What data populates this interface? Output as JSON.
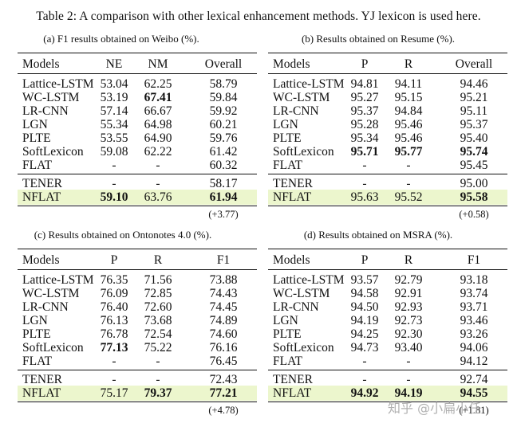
{
  "caption": "Table 2: A comparison with other lexical enhancement methods. YJ lexicon is used here.",
  "watermark": "知乎 @小扁小任",
  "highlight_color": "#ecf6cd",
  "tables": [
    {
      "subtitle": "(a) F1 results obtained on Weibo (%).",
      "headers": [
        "Models",
        "NE",
        "NM",
        "Overall"
      ],
      "rows": [
        {
          "model": "Lattice-LSTM",
          "v": [
            "53.04",
            "62.25",
            "58.79"
          ],
          "bold": [
            false,
            false,
            false
          ]
        },
        {
          "model": "WC-LSTM",
          "v": [
            "53.19",
            "67.41",
            "59.84"
          ],
          "bold": [
            false,
            true,
            false
          ]
        },
        {
          "model": "LR-CNN",
          "v": [
            "57.14",
            "66.67",
            "59.92"
          ],
          "bold": [
            false,
            false,
            false
          ]
        },
        {
          "model": "LGN",
          "v": [
            "55.34",
            "64.98",
            "60.21"
          ],
          "bold": [
            false,
            false,
            false
          ]
        },
        {
          "model": "PLTE",
          "v": [
            "53.55",
            "64.90",
            "59.76"
          ],
          "bold": [
            false,
            false,
            false
          ]
        },
        {
          "model": "SoftLexicon",
          "v": [
            "59.08",
            "62.22",
            "61.42"
          ],
          "bold": [
            false,
            false,
            false
          ]
        },
        {
          "model": "FLAT",
          "v": [
            "-",
            "-",
            "60.32"
          ],
          "bold": [
            false,
            false,
            false
          ]
        }
      ],
      "rows2": [
        {
          "model": "TENER",
          "v": [
            "-",
            "-",
            "58.17"
          ],
          "bold": [
            false,
            false,
            false
          ]
        },
        {
          "model": "NFLAT",
          "v": [
            "59.10",
            "63.76",
            "61.94"
          ],
          "bold": [
            true,
            false,
            true
          ]
        }
      ],
      "improvement": "(+3.77)"
    },
    {
      "subtitle": "(b) Results obtained on Resume (%).",
      "headers": [
        "Models",
        "P",
        "R",
        "Overall"
      ],
      "rows": [
        {
          "model": "Lattice-LSTM",
          "v": [
            "94.81",
            "94.11",
            "94.46"
          ],
          "bold": [
            false,
            false,
            false
          ]
        },
        {
          "model": "WC-LSTM",
          "v": [
            "95.27",
            "95.15",
            "95.21"
          ],
          "bold": [
            false,
            false,
            false
          ]
        },
        {
          "model": "LR-CNN",
          "v": [
            "95.37",
            "94.84",
            "95.11"
          ],
          "bold": [
            false,
            false,
            false
          ]
        },
        {
          "model": "LGN",
          "v": [
            "95.28",
            "95.46",
            "95.37"
          ],
          "bold": [
            false,
            false,
            false
          ]
        },
        {
          "model": "PLTE",
          "v": [
            "95.34",
            "95.46",
            "95.40"
          ],
          "bold": [
            false,
            false,
            false
          ]
        },
        {
          "model": "SoftLexicon",
          "v": [
            "95.71",
            "95.77",
            "95.74"
          ],
          "bold": [
            true,
            true,
            true
          ]
        },
        {
          "model": "FLAT",
          "v": [
            "-",
            "-",
            "95.45"
          ],
          "bold": [
            false,
            false,
            false
          ]
        }
      ],
      "rows2": [
        {
          "model": "TENER",
          "v": [
            "-",
            "-",
            "95.00"
          ],
          "bold": [
            false,
            false,
            false
          ]
        },
        {
          "model": "NFLAT",
          "v": [
            "95.63",
            "95.52",
            "95.58"
          ],
          "bold": [
            false,
            false,
            true
          ]
        }
      ],
      "improvement": "(+0.58)"
    },
    {
      "subtitle": "(c) Results obtained on Ontonotes 4.0 (%).",
      "headers": [
        "Models",
        "P",
        "R",
        "F1"
      ],
      "rows": [
        {
          "model": "Lattice-LSTM",
          "v": [
            "76.35",
            "71.56",
            "73.88"
          ],
          "bold": [
            false,
            false,
            false
          ]
        },
        {
          "model": "WC-LSTM",
          "v": [
            "76.09",
            "72.85",
            "74.43"
          ],
          "bold": [
            false,
            false,
            false
          ]
        },
        {
          "model": "LR-CNN",
          "v": [
            "76.40",
            "72.60",
            "74.45"
          ],
          "bold": [
            false,
            false,
            false
          ]
        },
        {
          "model": "LGN",
          "v": [
            "76.13",
            "73.68",
            "74.89"
          ],
          "bold": [
            false,
            false,
            false
          ]
        },
        {
          "model": "PLTE",
          "v": [
            "76.78",
            "72.54",
            "74.60"
          ],
          "bold": [
            false,
            false,
            false
          ]
        },
        {
          "model": "SoftLexicon",
          "v": [
            "77.13",
            "75.22",
            "76.16"
          ],
          "bold": [
            true,
            false,
            false
          ]
        },
        {
          "model": "FLAT",
          "v": [
            "-",
            "-",
            "76.45"
          ],
          "bold": [
            false,
            false,
            false
          ]
        }
      ],
      "rows2": [
        {
          "model": "TENER",
          "v": [
            "-",
            "-",
            "72.43"
          ],
          "bold": [
            false,
            false,
            false
          ]
        },
        {
          "model": "NFLAT",
          "v": [
            "75.17",
            "79.37",
            "77.21"
          ],
          "bold": [
            false,
            true,
            true
          ]
        }
      ],
      "improvement": "(+4.78)"
    },
    {
      "subtitle": "(d) Results obtained on MSRA (%).",
      "headers": [
        "Models",
        "P",
        "R",
        "F1"
      ],
      "rows": [
        {
          "model": "Lattice-LSTM",
          "v": [
            "93.57",
            "92.79",
            "93.18"
          ],
          "bold": [
            false,
            false,
            false
          ]
        },
        {
          "model": "WC-LSTM",
          "v": [
            "94.58",
            "92.91",
            "93.74"
          ],
          "bold": [
            false,
            false,
            false
          ]
        },
        {
          "model": "LR-CNN",
          "v": [
            "94.50",
            "92.93",
            "93.71"
          ],
          "bold": [
            false,
            false,
            false
          ]
        },
        {
          "model": "LGN",
          "v": [
            "94.19",
            "92.73",
            "93.46"
          ],
          "bold": [
            false,
            false,
            false
          ]
        },
        {
          "model": "PLTE",
          "v": [
            "94.25",
            "92.30",
            "93.26"
          ],
          "bold": [
            false,
            false,
            false
          ]
        },
        {
          "model": "SoftLexicon",
          "v": [
            "94.73",
            "93.40",
            "94.06"
          ],
          "bold": [
            false,
            false,
            false
          ]
        },
        {
          "model": "FLAT",
          "v": [
            "-",
            "-",
            "94.12"
          ],
          "bold": [
            false,
            false,
            false
          ]
        }
      ],
      "rows2": [
        {
          "model": "TENER",
          "v": [
            "-",
            "-",
            "92.74"
          ],
          "bold": [
            false,
            false,
            false
          ]
        },
        {
          "model": "NFLAT",
          "v": [
            "94.92",
            "94.19",
            "94.55"
          ],
          "bold": [
            true,
            true,
            true
          ]
        }
      ],
      "improvement": "(+1.81)"
    }
  ]
}
